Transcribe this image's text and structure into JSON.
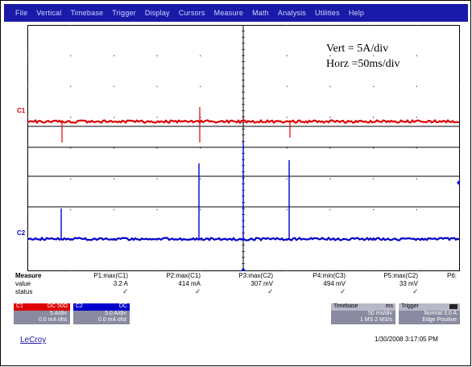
{
  "menu": [
    "File",
    "Vertical",
    "Timebase",
    "Trigger",
    "Display",
    "Cursors",
    "Measure",
    "Math",
    "Analysis",
    "Utilities",
    "Help"
  ],
  "annotations": {
    "vert": "Vert = 5A/div",
    "horz": "Horz =50ms/div"
  },
  "channel_markers": {
    "c1": "C1",
    "c2": "C2"
  },
  "measure": {
    "labels": {
      "measure": "Measure",
      "value": "value",
      "status": "status"
    },
    "columns": [
      {
        "name": "P1:max(C1)",
        "value": "3.2 A"
      },
      {
        "name": "P2:max(C1)",
        "value": "414 mA"
      },
      {
        "name": "P3:max(C2)",
        "value": "307 mV"
      },
      {
        "name": "P4:min(C3)",
        "value": "494 mV"
      },
      {
        "name": "P5:max(C2)",
        "value": "33 mV"
      },
      {
        "name": "P6:",
        "value": ""
      }
    ],
    "check": "✓"
  },
  "channel_boxes": {
    "c1": {
      "title": "C1",
      "title_right": "DC 50Ω",
      "row1": "5 A/div",
      "row2": "0.0 mA ofst"
    },
    "c2": {
      "title": "C2",
      "title_right": "DC",
      "row1": "5.0 A/div",
      "row2": "0.0 mA ofst"
    }
  },
  "timebase_box": {
    "title": "Timebase",
    "title_right": "ms",
    "row1": "50 ms/div",
    "row2": "1 MS  2 MS/s"
  },
  "trigger_box": {
    "title": "Trigger",
    "title_right": "",
    "row1": "Normal  3.0 A",
    "row2": "Edge  Positive"
  },
  "logo": "LeCroy",
  "datetime": "1/30/2008 3:17:05 PM",
  "colors": {
    "menubar": "#1a1aa8",
    "trace1": "#dd0000",
    "trace2": "#0000cc",
    "grid": "#000000",
    "c1_badge": "#dd0000",
    "c2_badge": "#0000cc"
  }
}
